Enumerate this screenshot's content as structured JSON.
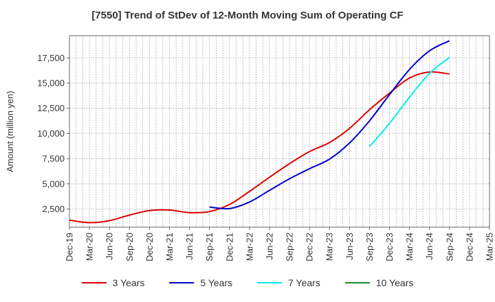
{
  "chart_data": {
    "type": "line",
    "title": "[7550]  Trend of StDev of 12-Month Moving Sum of Operating CF",
    "xlabel": "",
    "ylabel": "Amount (million yen)",
    "ylim": [
      700,
      19700
    ],
    "yticks": [
      2500,
      5000,
      7500,
      10000,
      12500,
      15000,
      17500
    ],
    "ytick_labels": [
      "2,500",
      "5,000",
      "7,500",
      "10,000",
      "12,500",
      "15,000",
      "17,500"
    ],
    "categories": [
      "Dec-19",
      "Mar-20",
      "Jun-20",
      "Sep-20",
      "Dec-20",
      "Mar-21",
      "Jun-21",
      "Sep-21",
      "Dec-21",
      "Mar-22",
      "Jun-22",
      "Sep-22",
      "Dec-22",
      "Mar-23",
      "Jun-23",
      "Sep-23",
      "Dec-23",
      "Mar-24",
      "Jun-24",
      "Sep-24",
      "Dec-24",
      "Mar-25"
    ],
    "grid": true,
    "legend_position": "bottom",
    "series": [
      {
        "name": "3 Years",
        "color": "#dd0000",
        "points": [
          [
            "Dec-19",
            1400
          ],
          [
            "Mar-20",
            1150
          ],
          [
            "Jun-20",
            1350
          ],
          [
            "Sep-20",
            1900
          ],
          [
            "Dec-20",
            2350
          ],
          [
            "Mar-21",
            2400
          ],
          [
            "Jun-21",
            2150
          ],
          [
            "Sep-21",
            2250
          ],
          [
            "Dec-21",
            2950
          ],
          [
            "Mar-22",
            4250
          ],
          [
            "Jun-22",
            5650
          ],
          [
            "Sep-22",
            7000
          ],
          [
            "Dec-22",
            8200
          ],
          [
            "Mar-23",
            9100
          ],
          [
            "Jun-23",
            10500
          ],
          [
            "Sep-23",
            12350
          ],
          [
            "Dec-23",
            14000
          ],
          [
            "Mar-24",
            15500
          ],
          [
            "Jun-24",
            16100
          ],
          [
            "Sep-24",
            15900
          ]
        ]
      },
      {
        "name": "5 Years",
        "color": "#0000cc",
        "points": [
          [
            "Sep-21",
            2700
          ],
          [
            "Dec-21",
            2550
          ],
          [
            "Mar-22",
            3200
          ],
          [
            "Jun-22",
            4350
          ],
          [
            "Sep-22",
            5500
          ],
          [
            "Dec-22",
            6500
          ],
          [
            "Mar-23",
            7450
          ],
          [
            "Jun-23",
            9050
          ],
          [
            "Sep-23",
            11250
          ],
          [
            "Dec-23",
            13850
          ],
          [
            "Mar-24",
            16350
          ],
          [
            "Jun-24",
            18200
          ],
          [
            "Sep-24",
            19200
          ]
        ]
      },
      {
        "name": "7 Years",
        "color": "#00eeee",
        "points": [
          [
            "Sep-23",
            8700
          ],
          [
            "Dec-23",
            11000
          ],
          [
            "Mar-24",
            13600
          ],
          [
            "Jun-24",
            15950
          ],
          [
            "Sep-24",
            17550
          ]
        ]
      },
      {
        "name": "10 Years",
        "color": "#228822",
        "points": []
      }
    ]
  }
}
